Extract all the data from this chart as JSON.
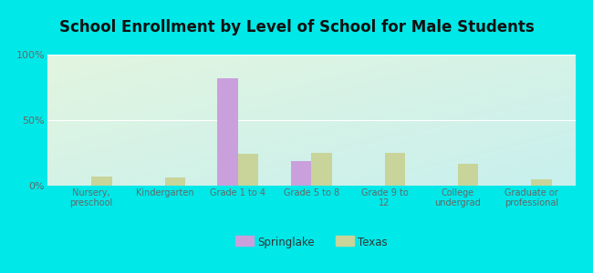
{
  "title": "School Enrollment by Level of School for Male Students",
  "categories": [
    "Nursery,\npreschool",
    "Kindergarten",
    "Grade 1 to 4",
    "Grade 5 to 8",
    "Grade 9 to\n12",
    "College\nundergrad",
    "Graduate or\nprofessional"
  ],
  "springlake": [
    0,
    0,
    82,
    19,
    0,
    0,
    0
  ],
  "texas": [
    7,
    6,
    24,
    25,
    25,
    17,
    5
  ],
  "springlake_color": "#c9a0dc",
  "texas_color": "#c8d49a",
  "background_outer": "#00e8e8",
  "background_inner_topleft": "#e2f5e0",
  "background_inner_bottomright": "#c8f0ee",
  "title_fontsize": 12,
  "ylabel_ticks": [
    "0%",
    "50%",
    "100%"
  ],
  "ylim": [
    0,
    100
  ],
  "bar_width": 0.28,
  "legend_labels": [
    "Springlake",
    "Texas"
  ]
}
